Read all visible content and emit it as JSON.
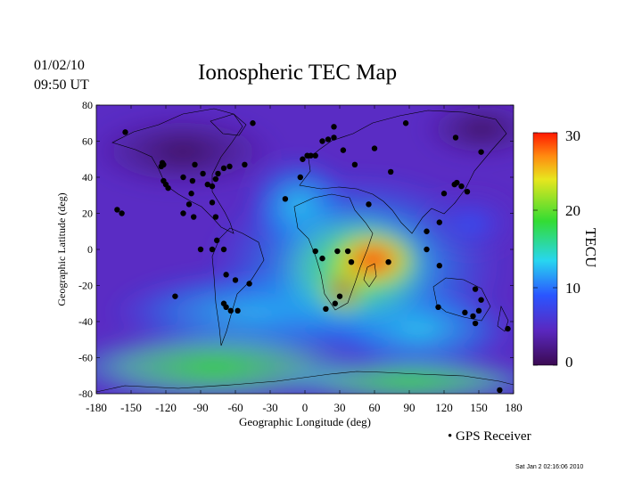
{
  "header": {
    "date": "01/02/10",
    "time": "09:50 UT",
    "title": "Ionospheric TEC Map"
  },
  "colorbar": {
    "label": "TECU",
    "ticks": [
      0,
      10,
      20,
      30
    ],
    "range": [
      0,
      30
    ]
  },
  "legend": {
    "marker": "•",
    "label": "GPS Receiver"
  },
  "footer": {
    "stamp": "Sat Jan  2 02:16:06 2010"
  },
  "colors": {
    "low": "#3b0a52",
    "purple": "#5a28c0",
    "blue": "#2a55ff",
    "cyan": "#28d6f0",
    "green": "#33dc33",
    "yellow": "#e8e61e",
    "orange": "#ff8a10",
    "high": "#ff1800",
    "receiver": "#000000"
  },
  "chart_data": {
    "type": "heatmap",
    "title": "Ionospheric TEC Map",
    "xlabel": "Geographic Longitude (deg)",
    "ylabel": "Geographic Latitude (deg)",
    "xlim": [
      -180,
      180
    ],
    "ylim": [
      -80,
      80
    ],
    "xticks": [
      -180,
      -150,
      -120,
      -90,
      -60,
      -30,
      0,
      30,
      60,
      90,
      120,
      150,
      180
    ],
    "yticks": [
      -80,
      -60,
      -40,
      -20,
      0,
      20,
      40,
      60,
      80
    ],
    "colorbar_label": "TECU",
    "value_range": [
      0,
      30
    ],
    "tec_features": [
      {
        "lon": 67,
        "lat": -6,
        "tec": 29
      },
      {
        "lon": 45,
        "lat": -5,
        "tec": 24
      },
      {
        "lon": 25,
        "lat": -15,
        "tec": 20
      },
      {
        "lon": 55,
        "lat": -25,
        "tec": 17
      },
      {
        "lon": 20,
        "lat": 10,
        "tec": 15
      },
      {
        "lon": 95,
        "lat": -25,
        "tec": 15
      },
      {
        "lon": -110,
        "lat": -70,
        "tec": 18
      },
      {
        "lon": -40,
        "lat": -70,
        "tec": 16
      },
      {
        "lon": 60,
        "lat": -75,
        "tec": 12
      },
      {
        "lon": -90,
        "lat": -55,
        "tec": 13
      },
      {
        "lon": 150,
        "lat": -60,
        "tec": 13
      },
      {
        "lon": -150,
        "lat": -40,
        "tec": 7
      },
      {
        "lon": -20,
        "lat": 25,
        "tec": 11
      },
      {
        "lon": 130,
        "lat": 10,
        "tec": 9
      },
      {
        "lon": -60,
        "lat": 0,
        "tec": 7
      },
      {
        "lon": -120,
        "lat": 20,
        "tec": 3
      },
      {
        "lon": -150,
        "lat": 60,
        "tec": 1
      },
      {
        "lon": 150,
        "lat": 70,
        "tec": 1
      }
    ],
    "receivers": [
      [
        -155,
        65
      ],
      [
        -162,
        22
      ],
      [
        -158,
        20
      ],
      [
        -123,
        48
      ],
      [
        -124,
        46
      ],
      [
        -122,
        47
      ],
      [
        -122,
        38
      ],
      [
        -120,
        36
      ],
      [
        -118,
        34
      ],
      [
        -105,
        40
      ],
      [
        -97,
        38
      ],
      [
        -95,
        47
      ],
      [
        -88,
        42
      ],
      [
        -84,
        36
      ],
      [
        -80,
        35
      ],
      [
        -77,
        39
      ],
      [
        -75,
        42
      ],
      [
        -70,
        45
      ],
      [
        -65,
        46
      ],
      [
        -52,
        47
      ],
      [
        -100,
        25
      ],
      [
        -98,
        31
      ],
      [
        -105,
        20
      ],
      [
        -96,
        18
      ],
      [
        -80,
        26
      ],
      [
        -77,
        18
      ],
      [
        -70,
        0
      ],
      [
        -80,
        0
      ],
      [
        -90,
        0
      ],
      [
        -76,
        5
      ],
      [
        -60,
        -17
      ],
      [
        -70,
        -30
      ],
      [
        -68,
        -32
      ],
      [
        -64,
        -34
      ],
      [
        -58,
        -34
      ],
      [
        -48,
        -19
      ],
      [
        -68,
        -14
      ],
      [
        -112,
        -26
      ],
      [
        -45,
        70
      ],
      [
        -4,
        40
      ],
      [
        -2,
        50
      ],
      [
        2,
        52
      ],
      [
        5,
        52
      ],
      [
        9,
        52
      ],
      [
        15,
        60
      ],
      [
        20,
        61
      ],
      [
        25,
        68
      ],
      [
        25,
        62
      ],
      [
        33,
        55
      ],
      [
        43,
        47
      ],
      [
        60,
        56
      ],
      [
        87,
        70
      ],
      [
        74,
        43
      ],
      [
        130,
        62
      ],
      [
        152,
        54
      ],
      [
        129,
        36
      ],
      [
        131,
        37
      ],
      [
        135,
        35
      ],
      [
        140,
        32
      ],
      [
        120,
        31
      ],
      [
        105,
        10
      ],
      [
        116,
        15
      ],
      [
        55,
        25
      ],
      [
        -17,
        28
      ],
      [
        9,
        -1
      ],
      [
        15,
        -5
      ],
      [
        28,
        -1
      ],
      [
        37,
        -1
      ],
      [
        40,
        -7
      ],
      [
        30,
        -26
      ],
      [
        26,
        -30
      ],
      [
        18,
        -33
      ],
      [
        72,
        -7
      ],
      [
        115,
        -32
      ],
      [
        116,
        -9
      ],
      [
        138,
        -35
      ],
      [
        145,
        -37
      ],
      [
        150,
        -34
      ],
      [
        152,
        -28
      ],
      [
        147,
        -22
      ],
      [
        147,
        -41
      ],
      [
        168,
        -78
      ],
      [
        175,
        -44
      ],
      [
        105,
        0
      ]
    ]
  }
}
